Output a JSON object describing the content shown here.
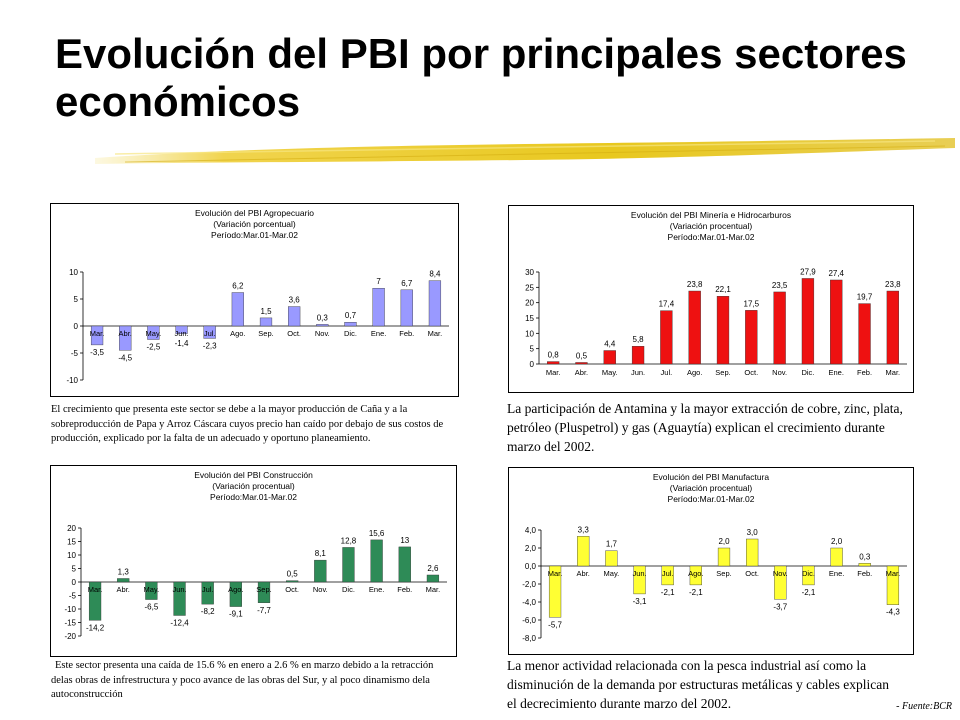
{
  "slide": {
    "title": "Evolución del PBI por principales sectores económicos",
    "source": "Fuente:BCR",
    "accent_stroke_color": "#e8c81e"
  },
  "descriptions": {
    "agro": "El crecimiento que presenta este sector se debe a la mayor producción de Caña y a la sobreproducción de Papa y Arroz Cáscara cuyos precio han caído por debajo de sus costos de producción, explicado por la falta de un adecuado y oportuno planeamiento.",
    "mineria": "La participación de Antamina y la mayor extracción de cobre, zinc, plata, petróleo (Pluspetrol) y gas (Aguaytía) explican el crecimiento durante marzo del 2002.",
    "construccion": "Este sector presenta una caída de 15.6 % en enero a 2.6 % en marzo debido a la retracción delas obras de infrestructura y poco avance de las obras del Sur, y al poco dinamismo dela autoconstrucción",
    "manufactura": "La menor actividad relacionada con la pesca industrial así como la disminución de la demanda por estructuras metálicas y cables explican el decrecimiento durante marzo del 2002."
  },
  "chart_data": [
    {
      "id": "agro",
      "type": "bar",
      "title": [
        "Evolución del PBI Agropecuario",
        "(Variación porcentual)",
        "Período:Mar.01-Mar.02"
      ],
      "categories": [
        "Mar.",
        "Abr.",
        "May.",
        "Jun.",
        "Jul.",
        "Ago.",
        "Sep.",
        "Oct.",
        "Nov.",
        "Dic.",
        "Ene.",
        "Feb.",
        "Mar."
      ],
      "values": [
        -3.5,
        -4.5,
        -2.5,
        -1.4,
        -2.3,
        6.2,
        1.5,
        3.6,
        0.3,
        0.7,
        7,
        6.7,
        8.4
      ],
      "labels": [
        "-3,5",
        "-4,5",
        "-2,5",
        "-1,4",
        "-2,3",
        "6,2",
        "1,5",
        "3,6",
        "0,3",
        "0,7",
        "7",
        "6,7",
        "8,4"
      ],
      "ylim": [
        -10,
        10
      ],
      "yticks": [
        -10,
        -5,
        0,
        5,
        10
      ],
      "ytick_labels": [
        "-10",
        "-5",
        "0",
        "5",
        "10"
      ],
      "bar_color": "#9999ff",
      "grid": false
    },
    {
      "id": "mineria",
      "type": "bar",
      "title": [
        "Evolución del PBI Minería e Hidrocarburos",
        "(Variación procentual)",
        "Período:Mar.01-Mar.02"
      ],
      "categories": [
        "Mar.",
        "Abr.",
        "May.",
        "Jun.",
        "Jul.",
        "Ago.",
        "Sep.",
        "Oct.",
        "Nov.",
        "Dic.",
        "Ene.",
        "Feb.",
        "Mar."
      ],
      "values": [
        0.8,
        0.5,
        4.4,
        5.8,
        17.4,
        23.8,
        22.1,
        17.5,
        23.5,
        27.9,
        27.4,
        19.7,
        23.8
      ],
      "labels": [
        "0,8",
        "0,5",
        "4,4",
        "5,8",
        "17,4",
        "23,8",
        "22,1",
        "17,5",
        "23,5",
        "27,9",
        "27,4",
        "19,7",
        "23,8"
      ],
      "ylim": [
        0,
        30
      ],
      "yticks": [
        0,
        5,
        10,
        15,
        20,
        25,
        30
      ],
      "ytick_labels": [
        "0",
        "5",
        "10",
        "15",
        "20",
        "25",
        "30"
      ],
      "bar_color": "#ee1111",
      "grid": false
    },
    {
      "id": "construccion",
      "type": "bar",
      "title": [
        "Evolución del PBI Construcción",
        "(Variación procentual)",
        "Período:Mar.01-Mar.02"
      ],
      "categories": [
        "Mar.",
        "Abr.",
        "May.",
        "Jun.",
        "Jul.",
        "Ago.",
        "Sep.",
        "Oct.",
        "Nov.",
        "Dic.",
        "Ene.",
        "Feb.",
        "Mar."
      ],
      "values": [
        -14.2,
        1.3,
        -6.5,
        -12.4,
        -8.2,
        -9.1,
        -7.7,
        0.5,
        8.1,
        12.8,
        15.6,
        13,
        2.6
      ],
      "labels": [
        "-14,2",
        "1,3",
        "-6,5",
        "-12,4",
        "-8,2",
        "-9,1",
        "-7,7",
        "0,5",
        "8,1",
        "12,8",
        "15,6",
        "13",
        "2,6"
      ],
      "ylim": [
        -20,
        20
      ],
      "yticks": [
        -20,
        -15,
        -10,
        -5,
        0,
        5,
        10,
        15,
        20
      ],
      "ytick_labels": [
        "-20",
        "-15",
        "-10",
        "-5",
        "0",
        "5",
        "10",
        "15",
        "20"
      ],
      "bar_color": "#2e8b57",
      "grid": false
    },
    {
      "id": "manufactura",
      "type": "bar",
      "title": [
        "Evolución del PBI Manufactura",
        "(Variación procentual)",
        "Período:Mar.01-Mar.02"
      ],
      "categories": [
        "Mar.",
        "Abr.",
        "May.",
        "Jun.",
        "Jul.",
        "Ago.",
        "Sep.",
        "Oct.",
        "Nov.",
        "Dic.",
        "Ene.",
        "Feb.",
        "Mar."
      ],
      "values": [
        -5.7,
        3.3,
        1.7,
        -3.1,
        -2.1,
        -2.1,
        2.0,
        3.0,
        -3.7,
        -2.1,
        2.0,
        0.3,
        -4.3
      ],
      "labels": [
        "-5,7",
        "3,3",
        "1,7",
        "-3,1",
        "-2,1",
        "-2,1",
        "2,0",
        "3,0",
        "-3,7",
        "-2,1",
        "2,0",
        "0,3",
        "-4,3"
      ],
      "ylim": [
        -8,
        4
      ],
      "yticks": [
        -8,
        -6,
        -4,
        -2,
        0,
        2,
        4
      ],
      "ytick_labels": [
        "-8,0",
        "-6,0",
        "-4,0",
        "-2,0",
        "0,0",
        "2,0",
        "4,0"
      ],
      "bar_color": "#ffff33",
      "grid": false
    }
  ]
}
